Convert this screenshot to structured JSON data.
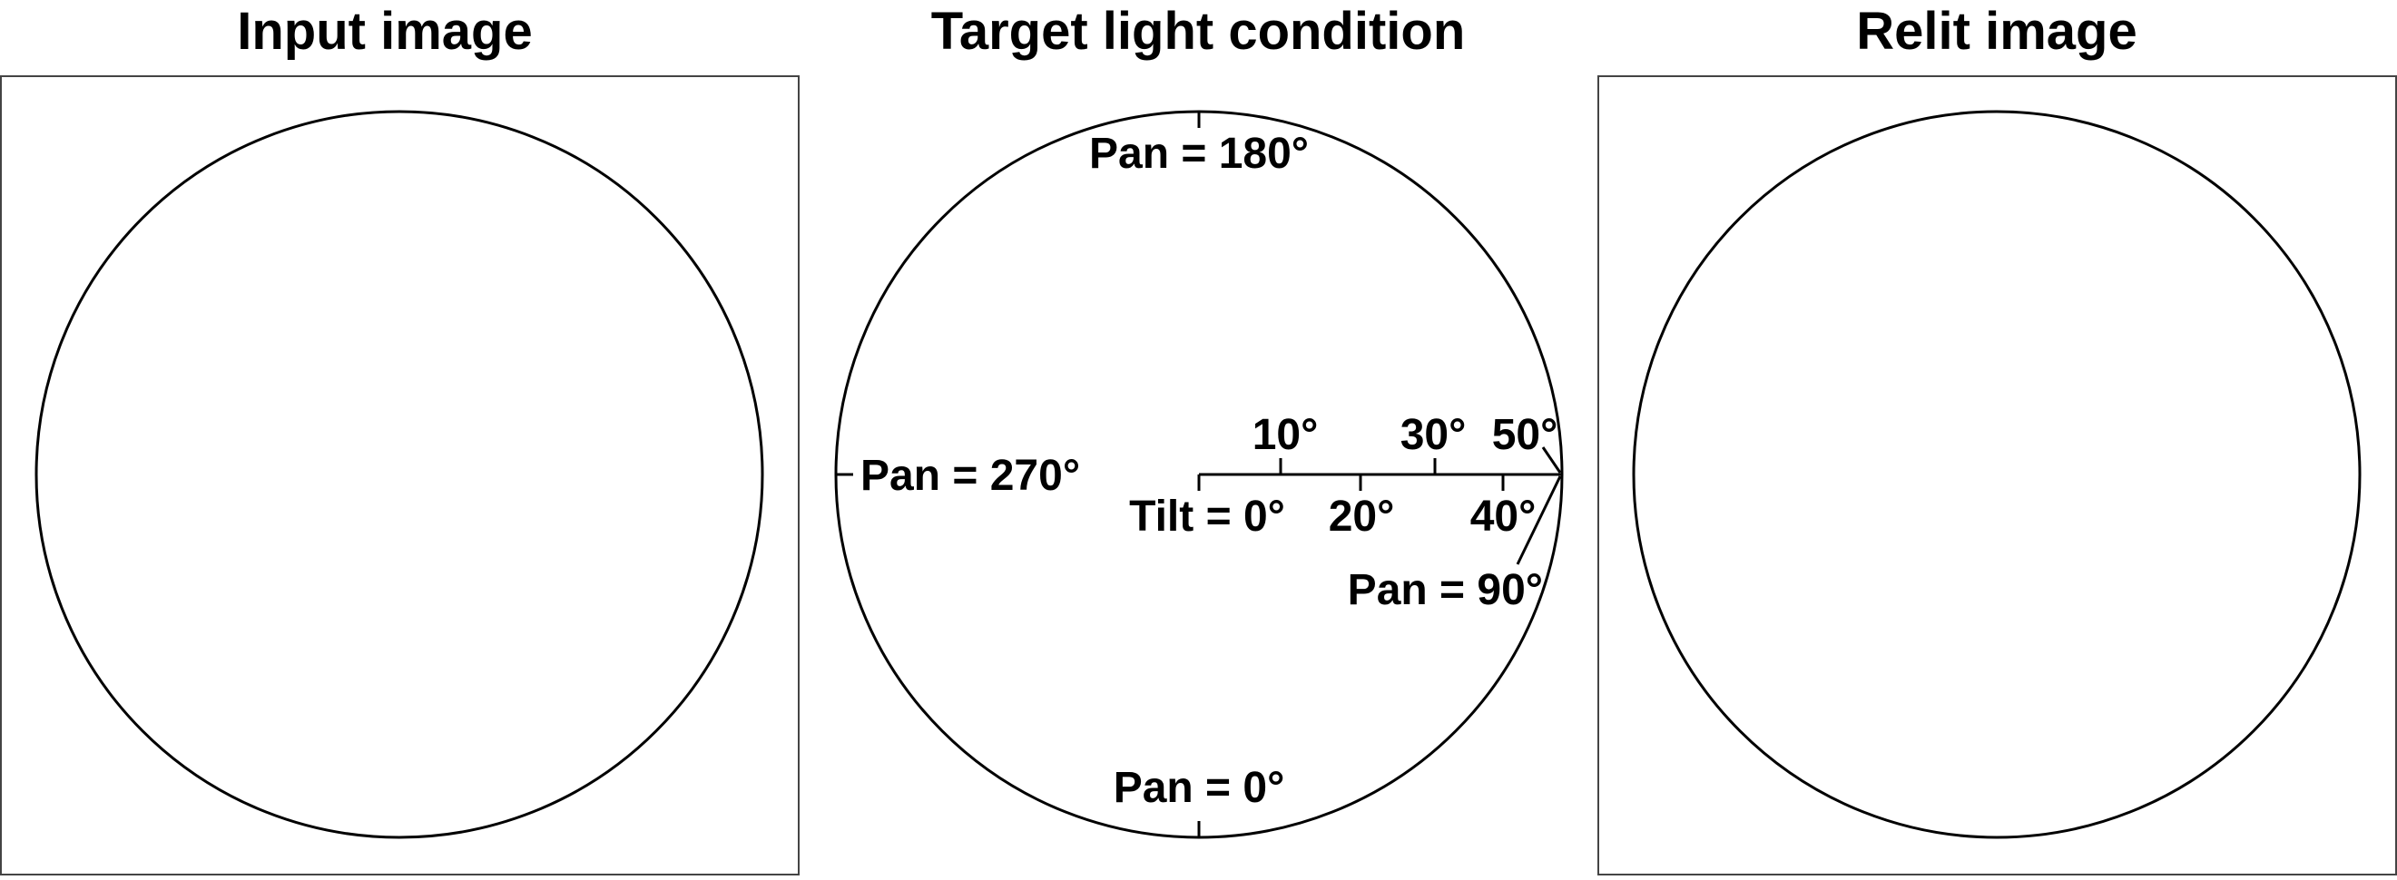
{
  "panels": {
    "input": {
      "title": "Input image"
    },
    "target": {
      "title": "Target light condition"
    },
    "relit": {
      "title": "Relit image"
    }
  },
  "diagram": {
    "pan_180": "Pan = 180°",
    "pan_270": "Pan = 270°",
    "pan_90": "Pan = 90°",
    "pan_0": "Pan = 0°",
    "tilt_0": "Tilt = 0°",
    "tilt_10": "10°",
    "tilt_20": "20°",
    "tilt_30": "30°",
    "tilt_40": "40°",
    "tilt_50": "50°"
  },
  "colors": {
    "stroke": "#000000",
    "frame": "#444444",
    "background": "#ffffff"
  }
}
